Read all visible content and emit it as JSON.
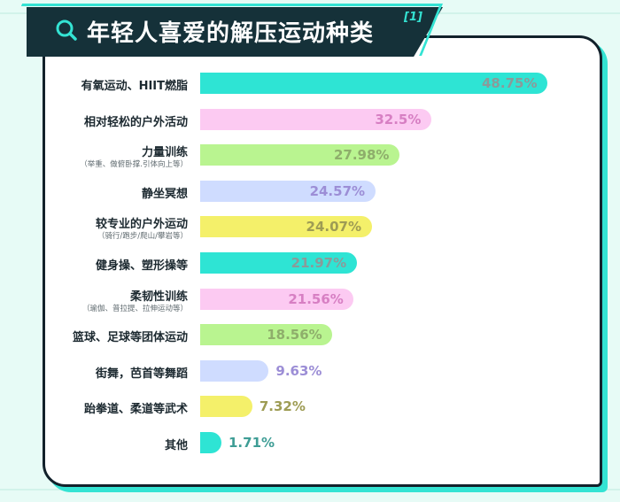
{
  "title": "年轻人喜爱的解压运动种类",
  "ref": "[1]",
  "icon": "search-icon",
  "colors": {
    "background": "#e7fbf6",
    "accent": "#34e3d3",
    "banner": "#153139"
  },
  "chart_data": {
    "type": "bar",
    "orientation": "horizontal",
    "title": "年轻人喜爱的解压运动种类",
    "grid": false,
    "unit": "%",
    "xlim": [
      0,
      50
    ],
    "categories": [
      "有氧运动、HIIT燃脂",
      "相对轻松的户外活动",
      "力量训练",
      "静坐冥想",
      "较专业的户外运动",
      "健身操、塑形操等",
      "柔韧性训练",
      "篮球、足球等团体运动",
      "街舞，芭首等舞蹈",
      "跆拳道、柔道等武术",
      "其他"
    ],
    "subtitles": [
      "",
      "",
      "（举重、做俯卧撑.引体向上等）",
      "",
      "（骑行/跑步/爬山/攀岩等）",
      "",
      "（瑜伽、普拉提、拉伸运动等）",
      "",
      "",
      "",
      ""
    ],
    "values": [
      48.75,
      32.5,
      27.98,
      24.57,
      24.07,
      21.97,
      21.56,
      18.56,
      9.63,
      7.32,
      1.71
    ],
    "labels": [
      "48.75%",
      "32.5%",
      "27.98%",
      "24.57%",
      "24.07%",
      "21.97%",
      "21.56%",
      "18.56%",
      "9.63%",
      "7.32%",
      "1.71%"
    ],
    "bar_colors": [
      "#2ee4d4",
      "#fccaf2",
      "#b9f490",
      "#cfdcff",
      "#f4f06a",
      "#2ee4d4",
      "#fccaf2",
      "#b9f490",
      "#cfdcff",
      "#f4f06a",
      "#2ee4d4"
    ],
    "label_colors": [
      "#8a9b9a",
      "#d77fc3",
      "#8eae6b",
      "#9c8ed6",
      "#9e9c54",
      "#8a9b9a",
      "#d77fc3",
      "#8eae6b",
      "#9c8ed6",
      "#9e9c54",
      "#3e9d95"
    ]
  }
}
